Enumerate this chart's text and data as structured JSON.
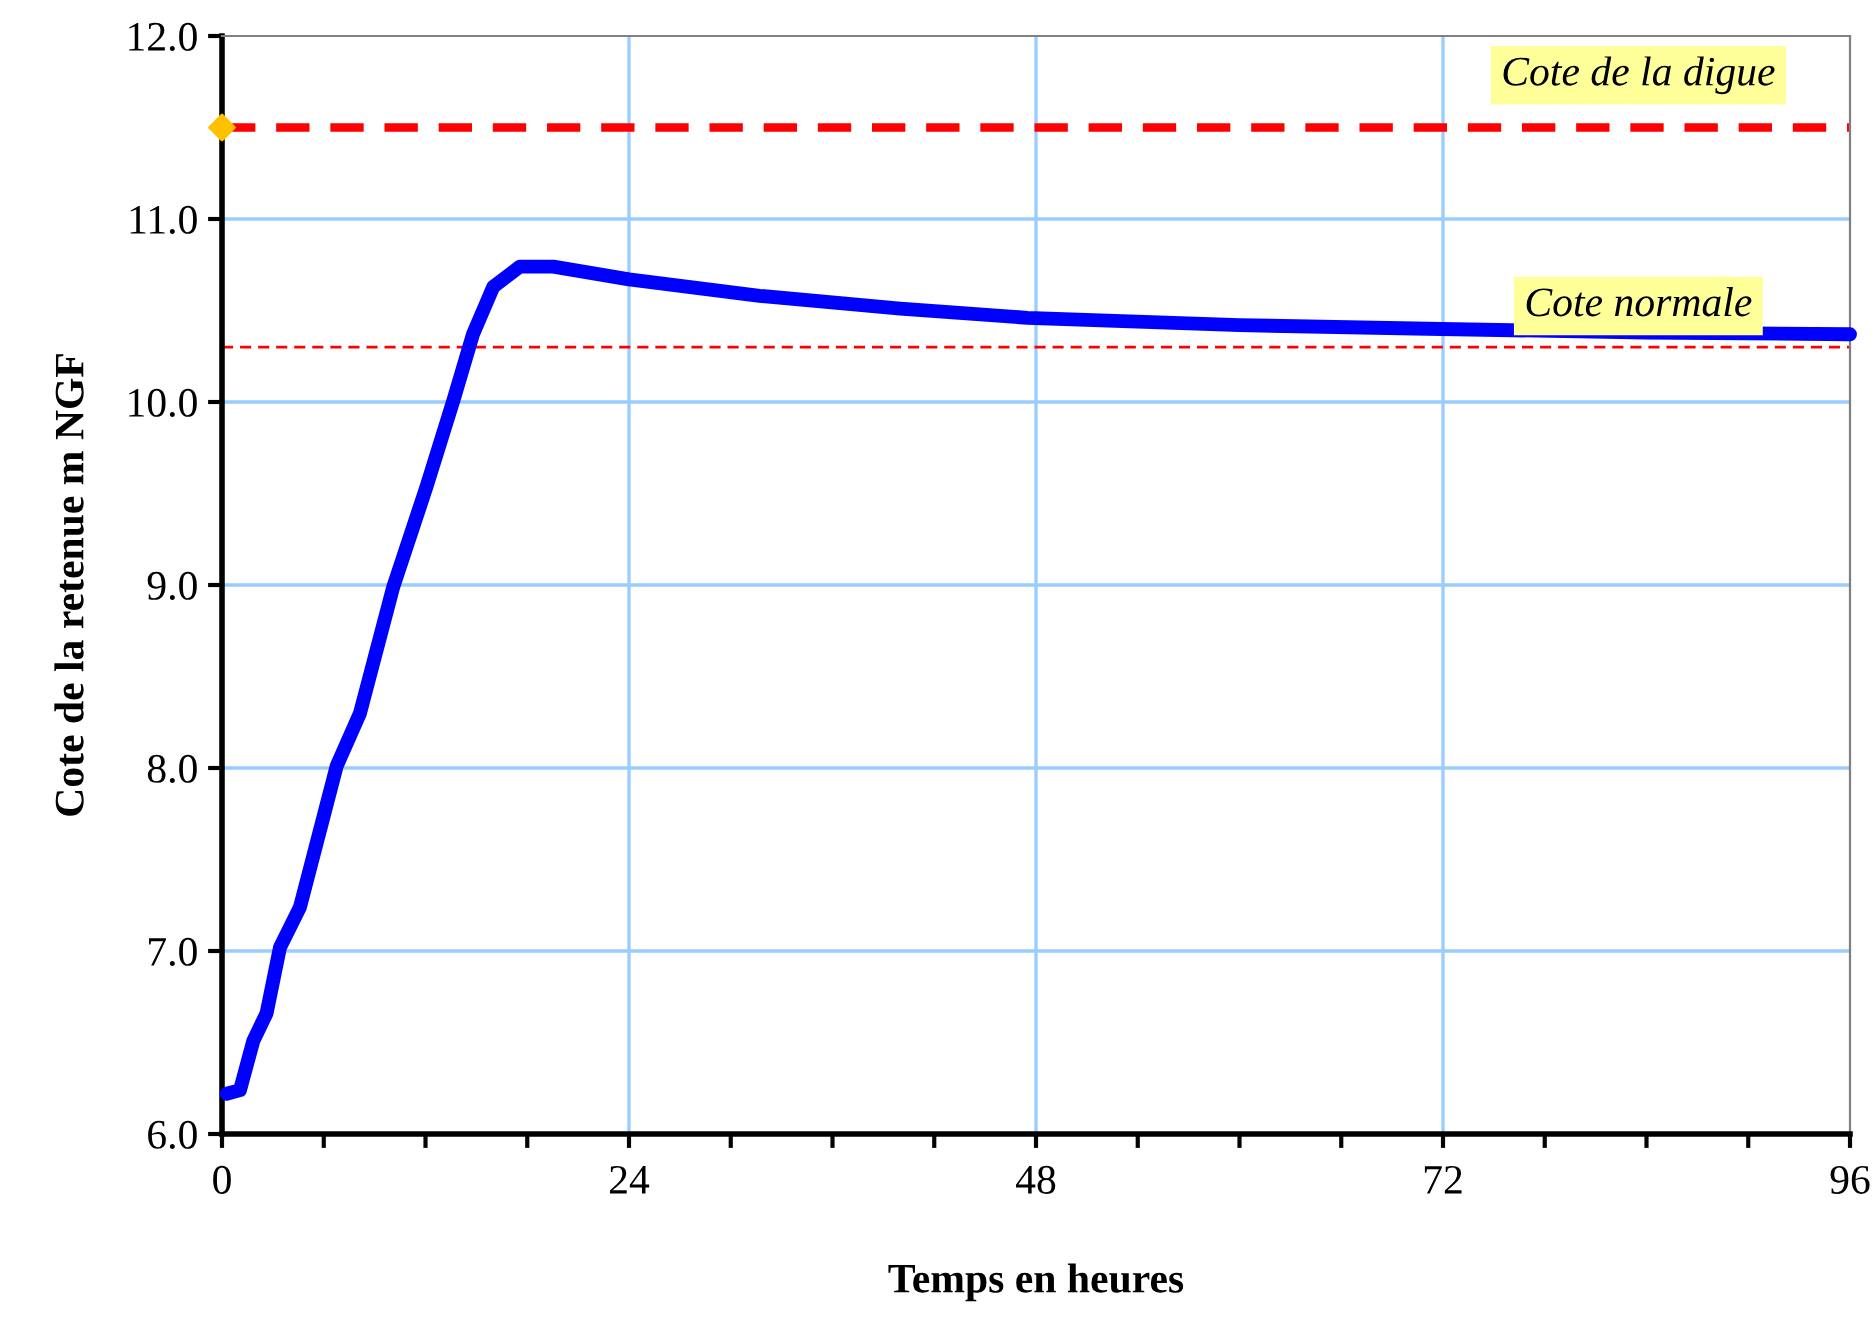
{
  "chart_data": {
    "type": "line",
    "xlabel": "Temps en heures",
    "ylabel": "Cote de la retenue m NGF",
    "xlim": [
      0,
      96
    ],
    "ylim": [
      6,
      12
    ],
    "xticks": [
      0,
      {
        "value": 6,
        "label": null
      },
      {
        "value": 12,
        "label": null
      },
      {
        "value": 18,
        "label": null
      },
      24,
      {
        "value": 30,
        "label": null
      },
      {
        "value": 36,
        "label": null
      },
      {
        "value": 42,
        "label": null
      },
      48,
      {
        "value": 54,
        "label": null
      },
      {
        "value": 60,
        "label": null
      },
      {
        "value": 66,
        "label": null
      },
      72,
      {
        "value": 78,
        "label": null
      },
      {
        "value": 84,
        "label": null
      },
      {
        "value": 90,
        "label": null
      },
      96
    ],
    "yticks": [
      {
        "value": 6,
        "label": "6.0"
      },
      {
        "value": 7,
        "label": "7.0"
      },
      {
        "value": 8,
        "label": "8.0"
      },
      {
        "value": 9,
        "label": "9.0"
      },
      {
        "value": 10,
        "label": "10.0"
      },
      {
        "value": 11,
        "label": "11.0"
      },
      {
        "value": 12,
        "label": "12.0"
      }
    ],
    "grid": true,
    "legend": false,
    "series": [
      {
        "color": "#0000ff",
        "marker": "none",
        "line_style": "solid",
        "x": [
          0.27,
          1.06,
          1.85,
          2.63,
          3.42,
          4.6,
          6.76,
          8.14,
          10.1,
          12.07,
          13.65,
          14.8,
          16.0,
          17.57,
          19.54,
          24,
          31.7,
          40,
          47.5,
          60,
          71.1,
          84,
          96
        ],
        "values": [
          6.22,
          6.24,
          6.51,
          6.66,
          7.02,
          7.24,
          8.01,
          8.3,
          8.99,
          9.54,
          10.01,
          10.37,
          10.63,
          10.74,
          10.74,
          10.67,
          10.58,
          10.51,
          10.46,
          10.42,
          10.4,
          10.38,
          10.37
        ]
      },
      {
        "type": "scatter",
        "color": "#ffc000",
        "marker": "diamond",
        "x": [
          0
        ],
        "values": [
          11.5
        ]
      }
    ],
    "ref_lines": [
      {
        "axis": "y",
        "value": 11.5,
        "label": "Cote de la digue",
        "color": "#ff0000",
        "line_style": "dashed"
      },
      {
        "axis": "y",
        "value": 10.3,
        "label": "Cote normale",
        "color": "#ff0000",
        "line_style": "dashed"
      }
    ]
  }
}
